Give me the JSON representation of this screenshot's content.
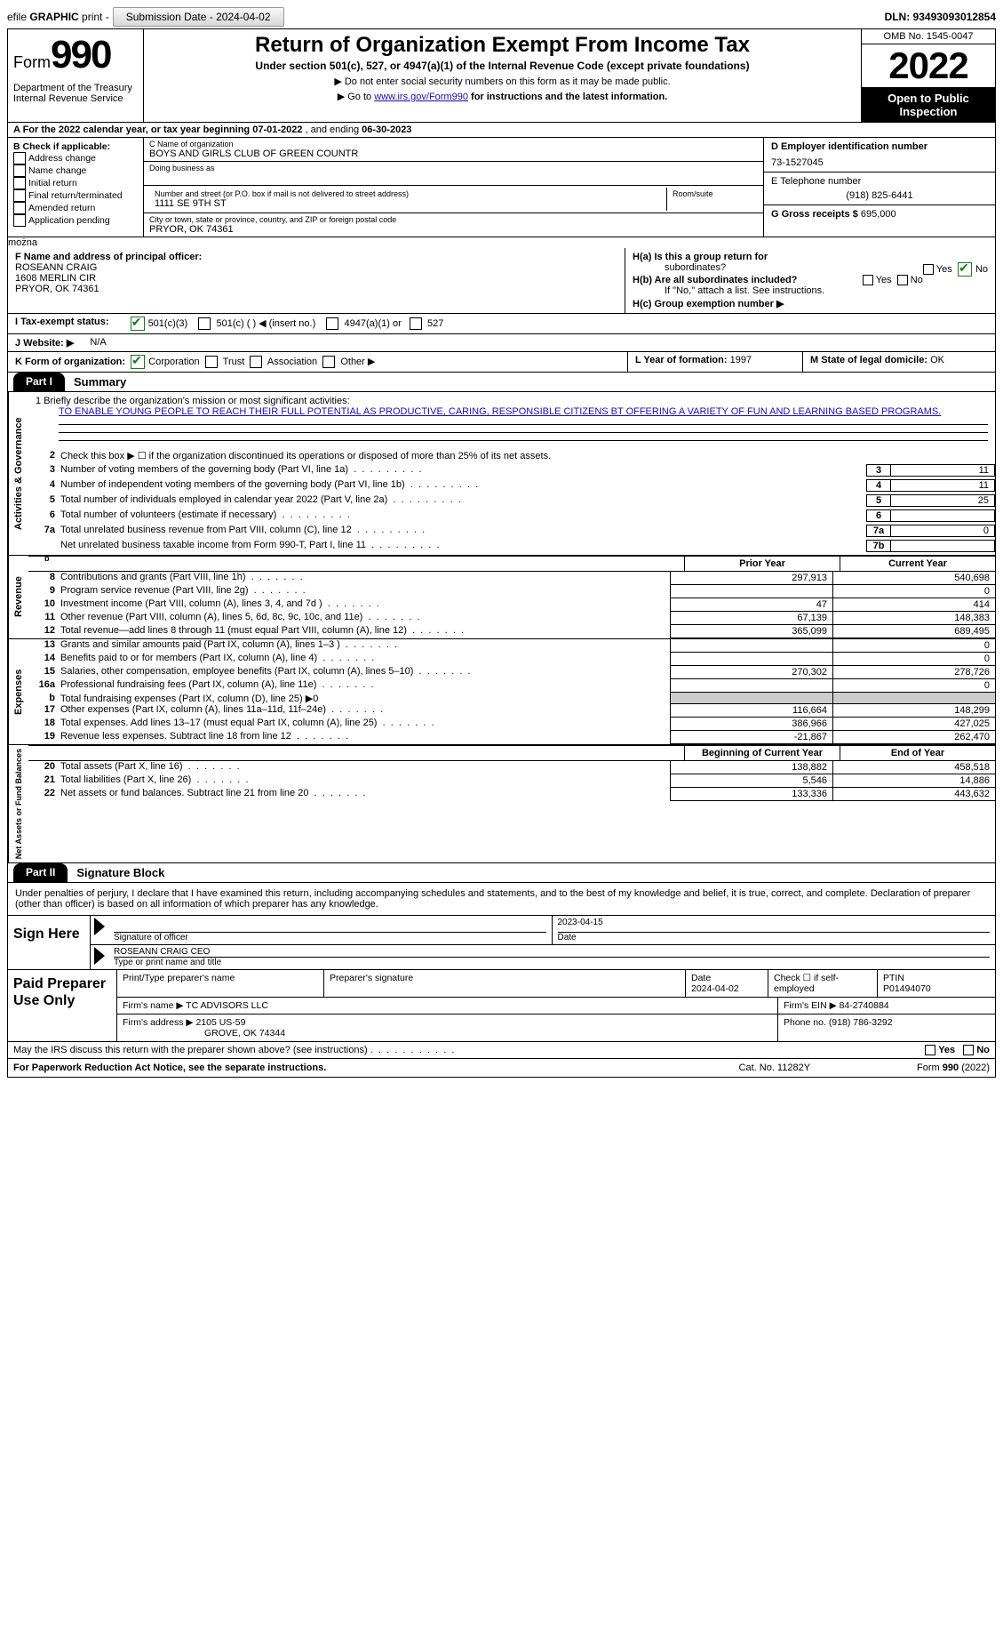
{
  "toolbar": {
    "efile_prefix": "efile",
    "efile_bold": "GRAPHIC",
    "efile_suffix": "print -",
    "submission_label": "Submission Date - 2024-04-02",
    "dln": "DLN: 93493093012854"
  },
  "header": {
    "form_word": "Form",
    "form_num": "990",
    "dep1": "Department of the Treasury",
    "dep2": "Internal Revenue Service",
    "title": "Return of Organization Exempt From Income Tax",
    "sub": "Under section 501(c), 527, or 4947(a)(1) of the Internal Revenue Code (except private foundations)",
    "note1_prefix": "▶ Do not enter social security numbers on this form as it may be made public.",
    "note2_prefix": "▶ Go to ",
    "note2_link": "www.irs.gov/Form990",
    "note2_suffix": " for instructions and the latest information.",
    "omb": "OMB No. 1545-0047",
    "year": "2022",
    "inspection1": "Open to Public",
    "inspection2": "Inspection"
  },
  "a_line": {
    "prefix": "A For the 2022 calendar year, or tax year beginning ",
    "begin": "07-01-2022",
    "mid": "   , and ending ",
    "end": "06-30-2023"
  },
  "sectionB": {
    "label": "B Check if applicable:",
    "opts": [
      "Address change",
      "Name change",
      "Initial return",
      "Final return/terminated",
      "Amended return",
      "Application pending"
    ]
  },
  "sectionC": {
    "name_label": "C Name of organization",
    "name": "BOYS AND GIRLS CLUB OF GREEN COUNTR",
    "dba_label": "Doing business as",
    "addr_label": "Number and street (or P.O. box if mail is not delivered to street address)",
    "room_label": "Room/suite",
    "addr": "1111 SE 9TH ST",
    "city_label": "City or town, state or province, country, and ZIP or foreign postal code",
    "city": "PRYOR, OK  74361"
  },
  "sectionD": {
    "ein_label": "D Employer identification number",
    "ein": "73-1527045",
    "phone_label": "E Telephone number",
    "phone": "(918) 825-6441",
    "gross_label": "G Gross receipts $",
    "gross": "695,000"
  },
  "sectionF": {
    "label": "F Name and address of principal officer:",
    "name": "ROSEANN CRAIG",
    "street": "1608 MERLIN CIR",
    "city": "PRYOR, OK  74361"
  },
  "sectionH": {
    "ha_label": "H(a)  Is this a group return for",
    "ha_sub": "subordinates?",
    "hb_label": "H(b)  Are all subordinates included?",
    "hb_note": "If \"No,\" attach a list. See instructions.",
    "hc_label": "H(c)  Group exemption number ▶",
    "yes": "Yes",
    "no": "No"
  },
  "rowI": {
    "label": "I   Tax-exempt status:",
    "opt1": "501(c)(3)",
    "opt2": "501(c) (   ) ◀ (insert no.)",
    "opt3": "4947(a)(1) or",
    "opt4": "527"
  },
  "rowJ": {
    "label": "J   Website: ▶",
    "value": "N/A"
  },
  "rowK": {
    "label": "K Form of organization:",
    "opts": [
      "Corporation",
      "Trust",
      "Association",
      "Other ▶"
    ]
  },
  "rowL": {
    "label": "L Year of formation:",
    "value": "1997"
  },
  "rowM": {
    "label": "M State of legal domicile:",
    "value": "OK"
  },
  "part1": {
    "badge": "Part I",
    "title": "Summary",
    "mission_label": "1   Briefly describe the organization's mission or most significant activities:",
    "mission": "TO ENABLE YOUNG PEOPLE TO REACH THEIR FULL POTENTIAL AS PRODUCTIVE, CARING, RESPONSIBLE CITIZENS BT OFFERING A VARIETY OF FUN AND LEARNING BASED PROGRAMS.",
    "line2": "Check this box ▶ ☐ if the organization discontinued its operations or disposed of more than 25% of its net assets.",
    "vtab1": "Activities & Governance",
    "vtab2": "Revenue",
    "vtab3": "Expenses",
    "vtab4": "Net Assets or Fund Balances",
    "py_label": "Prior Year",
    "cy_label": "Current Year",
    "bcy_label": "Beginning of Current Year",
    "eoy_label": "End of Year",
    "lines_gov": [
      {
        "n": "3",
        "d": "Number of voting members of the governing body (Part VI, line 1a)",
        "box": "3",
        "v": "11"
      },
      {
        "n": "4",
        "d": "Number of independent voting members of the governing body (Part VI, line 1b)",
        "box": "4",
        "v": "11"
      },
      {
        "n": "5",
        "d": "Total number of individuals employed in calendar year 2022 (Part V, line 2a)",
        "box": "5",
        "v": "25"
      },
      {
        "n": "6",
        "d": "Total number of volunteers (estimate if necessary)",
        "box": "6",
        "v": ""
      },
      {
        "n": "7a",
        "d": "Total unrelated business revenue from Part VIII, column (C), line 12",
        "box": "7a",
        "v": "0"
      },
      {
        "n": "",
        "d": "Net unrelated business taxable income from Form 990-T, Part I, line 11",
        "box": "7b",
        "v": ""
      }
    ],
    "lines_rev": [
      {
        "n": "8",
        "d": "Contributions and grants (Part VIII, line 1h)",
        "py": "297,913",
        "cy": "540,698"
      },
      {
        "n": "9",
        "d": "Program service revenue (Part VIII, line 2g)",
        "py": "",
        "cy": "0"
      },
      {
        "n": "10",
        "d": "Investment income (Part VIII, column (A), lines 3, 4, and 7d )",
        "py": "47",
        "cy": "414"
      },
      {
        "n": "11",
        "d": "Other revenue (Part VIII, column (A), lines 5, 6d, 8c, 9c, 10c, and 11e)",
        "py": "67,139",
        "cy": "148,383"
      },
      {
        "n": "12",
        "d": "Total revenue—add lines 8 through 11 (must equal Part VIII, column (A), line 12)",
        "py": "365,099",
        "cy": "689,495"
      }
    ],
    "lines_exp": [
      {
        "n": "13",
        "d": "Grants and similar amounts paid (Part IX, column (A), lines 1–3 )",
        "py": "",
        "cy": "0"
      },
      {
        "n": "14",
        "d": "Benefits paid to or for members (Part IX, column (A), line 4)",
        "py": "",
        "cy": "0"
      },
      {
        "n": "15",
        "d": "Salaries, other compensation, employee benefits (Part IX, column (A), lines 5–10)",
        "py": "270,302",
        "cy": "278,726"
      },
      {
        "n": "16a",
        "d": "Professional fundraising fees (Part IX, column (A), line 11e)",
        "py": "",
        "cy": "0"
      },
      {
        "n": "b",
        "d": "Total fundraising expenses (Part IX, column (D), line 25) ▶0",
        "py": "SHADE",
        "cy": "SHADE"
      },
      {
        "n": "17",
        "d": "Other expenses (Part IX, column (A), lines 11a–11d, 11f–24e)",
        "py": "116,664",
        "cy": "148,299"
      },
      {
        "n": "18",
        "d": "Total expenses. Add lines 13–17 (must equal Part IX, column (A), line 25)",
        "py": "386,966",
        "cy": "427,025"
      },
      {
        "n": "19",
        "d": "Revenue less expenses. Subtract line 18 from line 12",
        "py": "-21,867",
        "cy": "262,470"
      }
    ],
    "lines_net": [
      {
        "n": "20",
        "d": "Total assets (Part X, line 16)",
        "py": "138,882",
        "cy": "458,518"
      },
      {
        "n": "21",
        "d": "Total liabilities (Part X, line 26)",
        "py": "5,546",
        "cy": "14,886"
      },
      {
        "n": "22",
        "d": "Net assets or fund balances. Subtract line 21 from line 20",
        "py": "133,336",
        "cy": "443,632"
      }
    ]
  },
  "part2": {
    "badge": "Part II",
    "title": "Signature Block",
    "jurat": "Under penalties of perjury, I declare that I have examined this return, including accompanying schedules and statements, and to the best of my knowledge and belief, it is true, correct, and complete. Declaration of preparer (other than officer) is based on all information of which preparer has any knowledge.",
    "sign_here": "Sign Here",
    "sig_officer_lab": "Signature of officer",
    "sig_date": "2023-04-15",
    "sig_date_lab": "Date",
    "printed_name": "ROSEANN CRAIG  CEO",
    "printed_lab": "Type or print name and title"
  },
  "preparer": {
    "label": "Paid Preparer Use Only",
    "name_lab": "Print/Type preparer's name",
    "sig_lab": "Preparer's signature",
    "date_lab": "Date",
    "date": "2024-04-02",
    "self_lab": "Check ☐ if self-employed",
    "ptin_lab": "PTIN",
    "ptin": "P01494070",
    "firm_name_lab": "Firm's name   ▶",
    "firm_name": "TC ADVISORS LLC",
    "firm_ein_lab": "Firm's EIN ▶",
    "firm_ein": "84-2740884",
    "firm_addr_lab": "Firm's address ▶",
    "firm_addr1": "2105 US-59",
    "firm_addr2": "GROVE, OK  74344",
    "phone_lab": "Phone no.",
    "phone": "(918) 786-3292"
  },
  "footer": {
    "discuss": "May the IRS discuss this return with the preparer shown above? (see instructions)",
    "yes": "Yes",
    "no": "No",
    "pra": "For Paperwork Reduction Act Notice, see the separate instructions.",
    "cat": "Cat. No. 11282Y",
    "form": "Form 990 (2022)"
  }
}
